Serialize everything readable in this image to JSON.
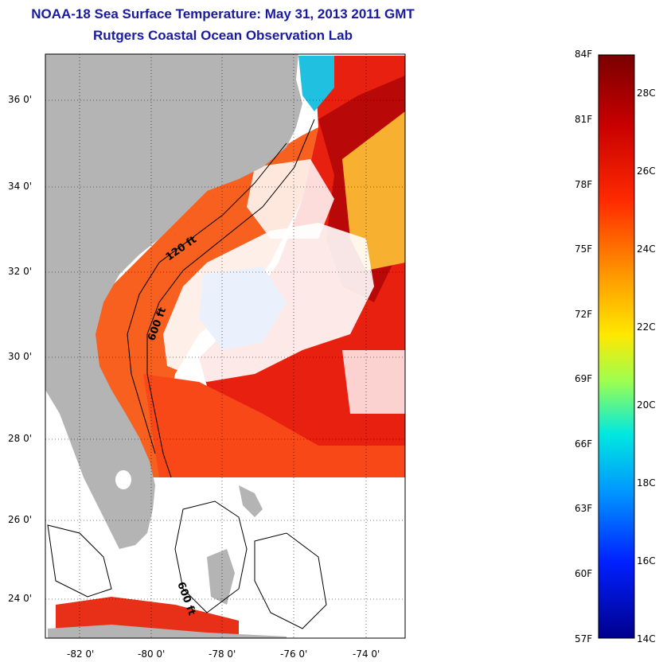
{
  "title": {
    "line1": "NOAA-18 Sea Surface Temperature:  May 31, 2013 2011 GMT",
    "line2": "Rutgers Coastal Ocean Observation Lab"
  },
  "map": {
    "lat_ticks": [
      "36 0'",
      "34 0'",
      "32 0'",
      "30 0'",
      "28 0'",
      "26 0'",
      "24 0'"
    ],
    "lon_ticks": [
      "-82 0'",
      "-80 0'",
      "-78 0'",
      "-76 0'",
      "-74 0'"
    ],
    "contour_labels": [
      "120 ft",
      "600 ft",
      "600 ft"
    ],
    "land_color": "#b4b4b4",
    "cloud_color": "#ffffff"
  },
  "colorbar": {
    "fahrenheit": [
      "84F",
      "81F",
      "78F",
      "75F",
      "72F",
      "69F",
      "66F",
      "63F",
      "60F",
      "57F"
    ],
    "celsius": [
      "28C",
      "26C",
      "24C",
      "22C",
      "20C",
      "18C",
      "16C",
      "14C"
    ]
  }
}
